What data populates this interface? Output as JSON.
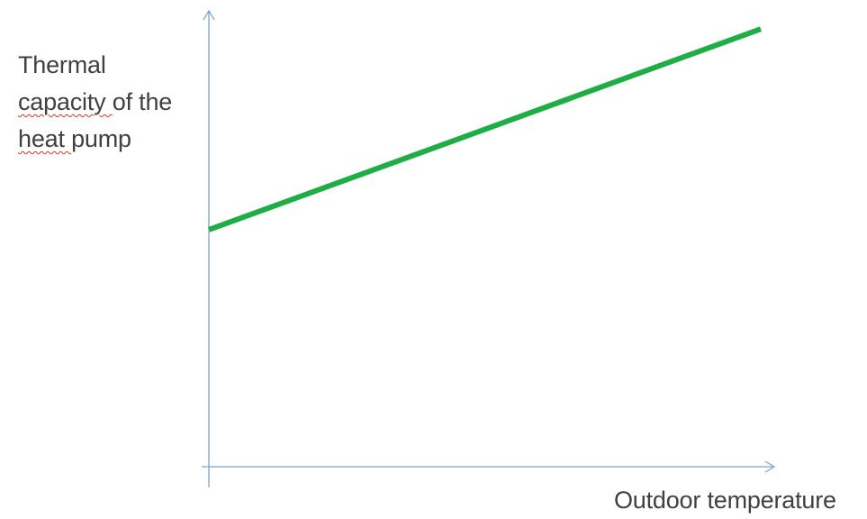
{
  "chart_data": {
    "type": "line",
    "ylabel_lines": [
      {
        "text": "Thermal",
        "spellcheck_marked": false
      },
      {
        "text": "capacity of the",
        "spellcheck_marked": true
      },
      {
        "text": "heat pump",
        "spellcheck_marked": true
      }
    ],
    "xlabel": "Outdoor temperature",
    "x_ticks_shown": false,
    "y_ticks_shown": false,
    "grid": false,
    "legend": "none",
    "xlim": [
      0,
      1
    ],
    "ylim": [
      0,
      1
    ],
    "series": [
      {
        "color": "#1fae45",
        "points": [
          {
            "x": 0.0,
            "y": 0.52
          },
          {
            "x": 1.0,
            "y": 0.96
          }
        ]
      }
    ],
    "axis_color": "#7aa6d6"
  }
}
